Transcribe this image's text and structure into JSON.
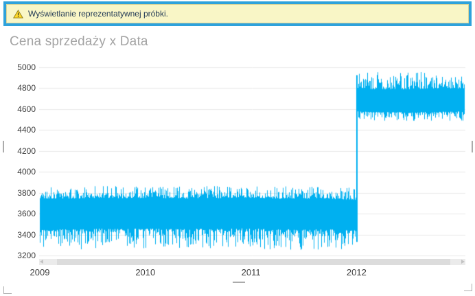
{
  "banner": {
    "text": "Wyświetlanie reprezentatywnej próbki.",
    "icon": "warning-icon",
    "background": "#F9F6C6",
    "frame_color": "#2FA2DB",
    "inner_border": "#D9D59A",
    "text_color": "#1F3754"
  },
  "title": "Cena sprzedaży x Data",
  "icons": {
    "warning": "⚠",
    "scrollbar_left_arrow": "◄",
    "scrollbar_right_arrow": "►"
  },
  "colors": {
    "series": "#00B0F0",
    "gridline": "#E8E8E8",
    "tick_label": "#3D3D3D",
    "title": "#A3A3A3",
    "scrollbar_track": "#EBEBEB",
    "scrollbar_thumb": "#DCDCDC",
    "handle": "#ABABAB"
  },
  "chart_data": {
    "type": "line",
    "title": "Cena sprzedaży x Data",
    "note": "dense high-frequency time series rendered as a representative sample band",
    "x_tick_labels": [
      "2009",
      "2010",
      "2011",
      "2012"
    ],
    "x_range_years": [
      2009,
      2013.05
    ],
    "ylim": [
      3200,
      5000
    ],
    "y_ticks": [
      5000,
      4800,
      4600,
      4400,
      4200,
      4000,
      3800,
      3600,
      3400,
      3200
    ],
    "grid": "horizontal",
    "legend": "none",
    "series": [
      {
        "name": "Cena sprzedaży",
        "color": "#00B0F0",
        "segments": [
          {
            "x_start": 2009.0,
            "x_end": 2012.0,
            "core_band": [
              3450,
              3745
            ],
            "min": 3255,
            "max": 3862,
            "mean": 3597
          },
          {
            "x_start": 2012.0,
            "x_end": 2013.05,
            "core_band": [
              4585,
              4805
            ],
            "min": 4490,
            "max": 4968,
            "mean": 4695
          }
        ]
      }
    ],
    "annotations": [
      "step increase from ~3600 level to ~4700 level at the start of 2012"
    ]
  }
}
